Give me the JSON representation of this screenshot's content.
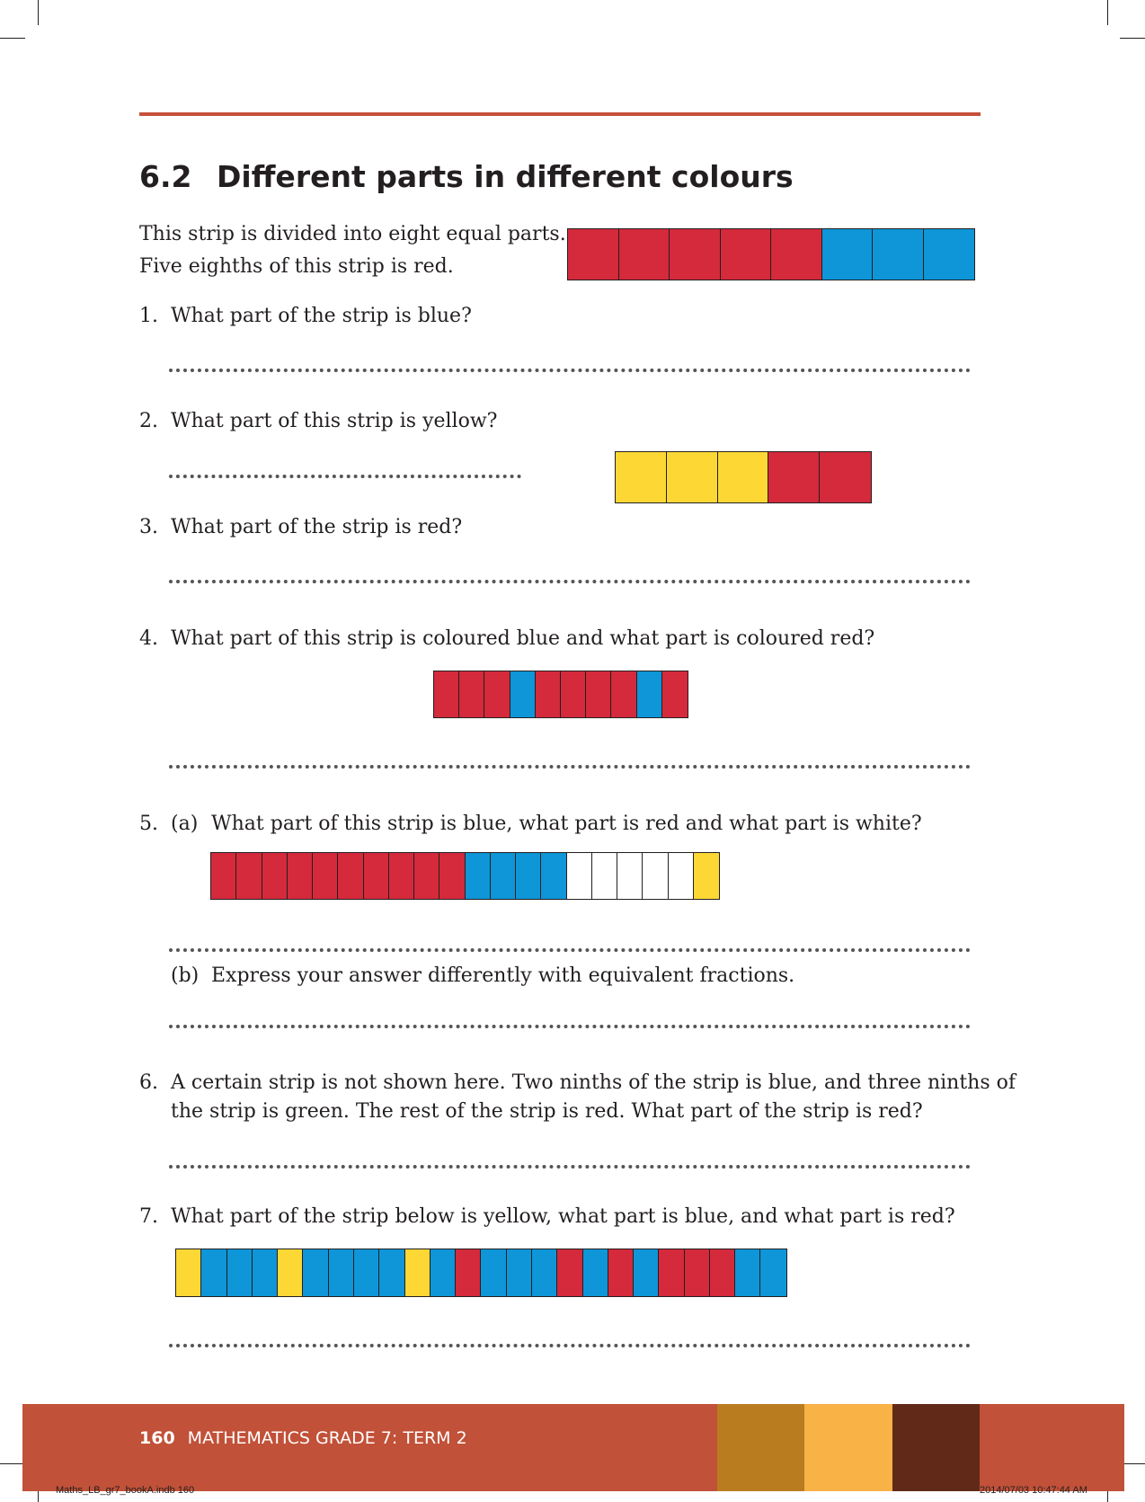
{
  "colors": {
    "red": "#d42a3c",
    "blue": "#0e96d8",
    "yellow": "#fdd835",
    "white": "#ffffff",
    "rule": "#c5503a",
    "footer_bg": "#c15138",
    "footer_swatches": [
      "#b97d20",
      "#f8b246",
      "#612918"
    ]
  },
  "section": {
    "number": "6.2",
    "title": "Different parts in different colours"
  },
  "intro": {
    "line1": "This strip is divided into eight equal parts.",
    "line2": "Five eighths of this strip is red."
  },
  "strips": {
    "intro": [
      "red",
      "red",
      "red",
      "red",
      "red",
      "blue",
      "blue",
      "blue"
    ],
    "q2": [
      "yellow",
      "yellow",
      "yellow",
      "red",
      "red"
    ],
    "q4": [
      "red",
      "red",
      "red",
      "blue",
      "red",
      "red",
      "red",
      "red",
      "blue",
      "red"
    ],
    "q5": [
      "red",
      "red",
      "red",
      "red",
      "red",
      "red",
      "red",
      "red",
      "red",
      "red",
      "blue",
      "blue",
      "blue",
      "blue",
      "white",
      "white",
      "white",
      "white",
      "white",
      "yellow"
    ],
    "q7": [
      "yellow",
      "blue",
      "blue",
      "blue",
      "yellow",
      "blue",
      "blue",
      "blue",
      "blue",
      "yellow",
      "blue",
      "red",
      "blue",
      "blue",
      "blue",
      "red",
      "blue",
      "red",
      "blue",
      "red",
      "red",
      "red",
      "blue",
      "blue"
    ]
  },
  "questions": {
    "q1": {
      "number": "1.",
      "text": "What part of the strip is blue?"
    },
    "q2": {
      "number": "2.",
      "text": "What part of this strip is yellow?"
    },
    "q3": {
      "number": "3.",
      "text": "What part of the strip is red?"
    },
    "q4": {
      "number": "4.",
      "text": "What part of this strip is coloured blue and what part is coloured red?"
    },
    "q5": {
      "number": "5.",
      "a_label": "(a)",
      "a_text": "What part of this strip is blue, what part is red and what part is white?",
      "b_label": "(b)",
      "b_text": "Express your answer differently with equivalent fractions."
    },
    "q6": {
      "number": "6.",
      "line1": "A certain strip is not shown here. Two ninths of the strip is blue, and three ninths of",
      "line2": "the strip is green. The rest of the strip is red. What part of the strip is red?"
    },
    "q7": {
      "number": "7.",
      "text": "What part of the strip below is yellow, what part is blue, and what part is red?"
    }
  },
  "footer": {
    "page_number": "160",
    "title": "MATHEMATICS GRADE 7: TERM 2"
  },
  "slug": {
    "file": "Maths_LB_gr7_bookA.indb   160",
    "timestamp": "2014/07/03   10:47:44 AM"
  }
}
